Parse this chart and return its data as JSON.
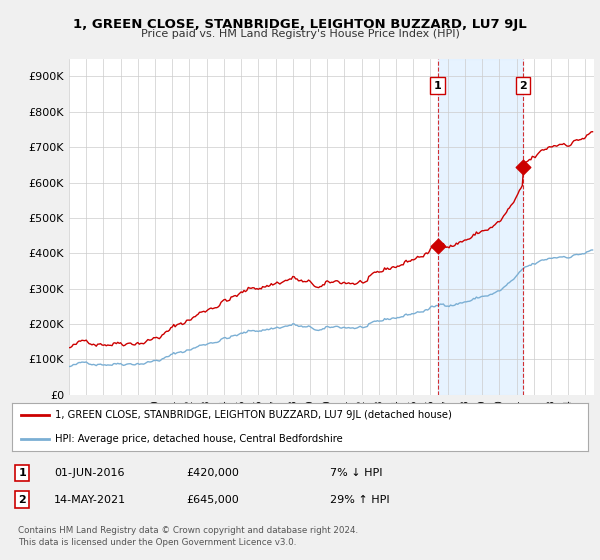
{
  "title": "1, GREEN CLOSE, STANBRIDGE, LEIGHTON BUZZARD, LU7 9JL",
  "subtitle": "Price paid vs. HM Land Registry's House Price Index (HPI)",
  "legend_line1": "1, GREEN CLOSE, STANBRIDGE, LEIGHTON BUZZARD, LU7 9JL (detached house)",
  "legend_line2": "HPI: Average price, detached house, Central Bedfordshire",
  "annotation1_label": "1",
  "annotation1_date": "01-JUN-2016",
  "annotation1_price": "£420,000",
  "annotation1_hpi": "7% ↓ HPI",
  "annotation2_label": "2",
  "annotation2_date": "14-MAY-2021",
  "annotation2_price": "£645,000",
  "annotation2_hpi": "29% ↑ HPI",
  "footer1": "Contains HM Land Registry data © Crown copyright and database right 2024.",
  "footer2": "This data is licensed under the Open Government Licence v3.0.",
  "xmin": 1995.0,
  "xmax": 2025.5,
  "ymin": 0,
  "ymax": 950000,
  "yticks": [
    0,
    100000,
    200000,
    300000,
    400000,
    500000,
    600000,
    700000,
    800000,
    900000
  ],
  "ytick_labels": [
    "£0",
    "£100K",
    "£200K",
    "£300K",
    "£400K",
    "£500K",
    "£600K",
    "£700K",
    "£800K",
    "£900K"
  ],
  "red_color": "#cc0000",
  "blue_color": "#7bafd4",
  "shade_color": "#ddeeff",
  "point1_x": 2016.42,
  "point1_y": 420000,
  "point2_x": 2021.37,
  "point2_y": 645000,
  "bg_color": "#f0f0f0",
  "plot_bg_color": "#ffffff"
}
